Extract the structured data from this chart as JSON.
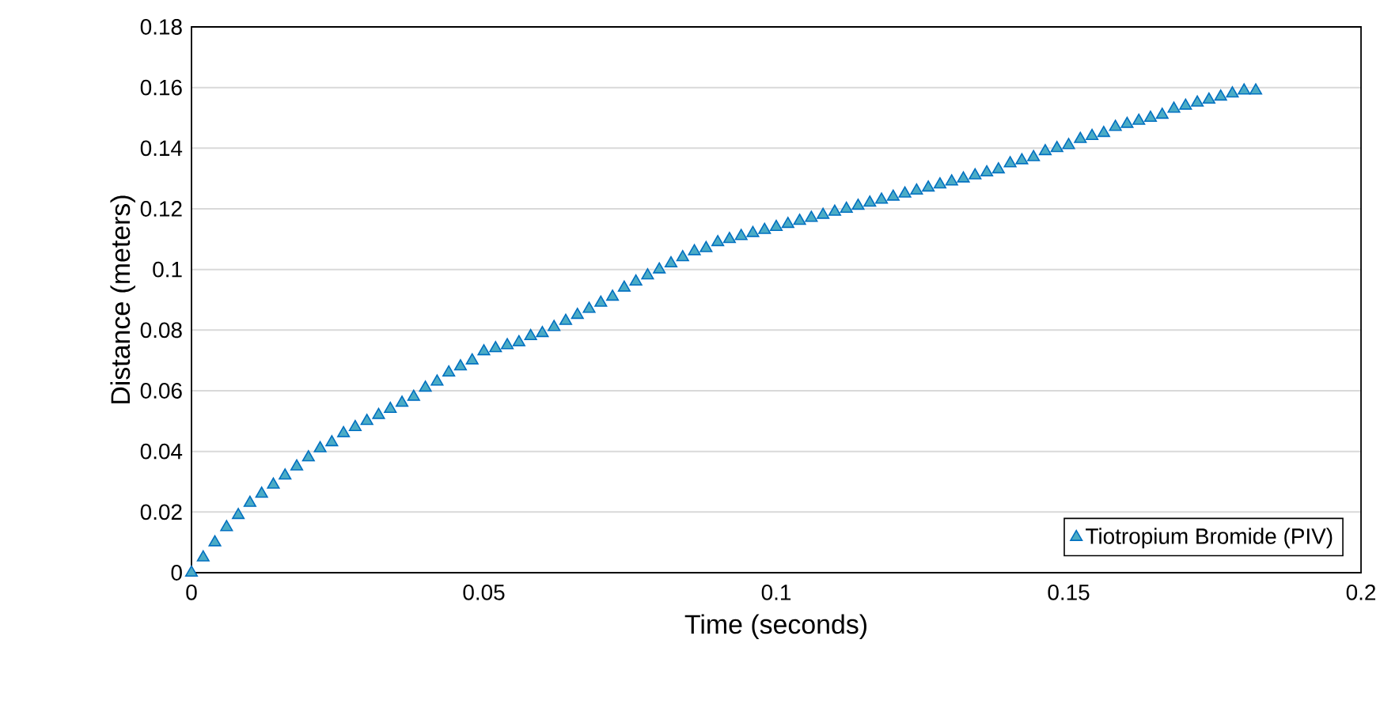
{
  "chart_data": {
    "type": "scatter",
    "xlabel": "Time (seconds)",
    "ylabel": "Distance (meters)",
    "xlim": [
      0,
      0.2
    ],
    "ylim": [
      0,
      0.18
    ],
    "xticks": [
      0,
      0.05,
      0.1,
      0.15,
      0.2
    ],
    "yticks": [
      0,
      0.02,
      0.04,
      0.06,
      0.08,
      0.1,
      0.12,
      0.14,
      0.16,
      0.18
    ],
    "grid": "y",
    "legend": "bottom right",
    "marker": "triangle",
    "x": [
      0,
      0.002,
      0.004,
      0.006,
      0.008,
      0.01,
      0.012,
      0.014,
      0.016,
      0.018,
      0.02,
      0.022,
      0.024,
      0.026,
      0.028,
      0.03,
      0.032,
      0.034,
      0.036,
      0.038,
      0.04,
      0.042,
      0.044,
      0.046,
      0.048,
      0.05,
      0.052,
      0.054,
      0.056,
      0.058,
      0.06,
      0.062,
      0.064,
      0.066,
      0.068,
      0.07,
      0.072,
      0.074,
      0.076,
      0.078,
      0.08,
      0.082,
      0.084,
      0.086,
      0.088,
      0.09,
      0.092,
      0.094,
      0.096,
      0.098,
      0.1,
      0.102,
      0.104,
      0.106,
      0.108,
      0.11,
      0.112,
      0.114,
      0.116,
      0.118,
      0.12,
      0.122,
      0.124,
      0.126,
      0.128,
      0.13,
      0.132,
      0.134,
      0.136,
      0.138,
      0.14,
      0.142,
      0.144,
      0.146,
      0.148,
      0.15,
      0.152,
      0.154,
      0.156,
      0.158,
      0.16,
      0.162,
      0.164,
      0.166,
      0.168,
      0.17,
      0.172,
      0.174,
      0.176,
      0.178,
      0.18,
      0.182
    ],
    "series": [
      {
        "name": "Tiotropium Bromide (PIV)",
        "color": "#4bacc6",
        "values": [
          0,
          0.005,
          0.01,
          0.015,
          0.019,
          0.023,
          0.026,
          0.029,
          0.032,
          0.035,
          0.038,
          0.041,
          0.043,
          0.046,
          0.048,
          0.05,
          0.052,
          0.054,
          0.056,
          0.058,
          0.061,
          0.063,
          0.066,
          0.068,
          0.07,
          0.073,
          0.074,
          0.075,
          0.076,
          0.078,
          0.079,
          0.081,
          0.083,
          0.085,
          0.087,
          0.089,
          0.091,
          0.094,
          0.096,
          0.098,
          0.1,
          0.102,
          0.104,
          0.106,
          0.107,
          0.109,
          0.11,
          0.111,
          0.112,
          0.113,
          0.114,
          0.115,
          0.116,
          0.117,
          0.118,
          0.119,
          0.12,
          0.121,
          0.122,
          0.123,
          0.124,
          0.125,
          0.126,
          0.127,
          0.128,
          0.129,
          0.13,
          0.131,
          0.132,
          0.133,
          0.135,
          0.136,
          0.137,
          0.139,
          0.14,
          0.141,
          0.143,
          0.144,
          0.145,
          0.147,
          0.148,
          0.149,
          0.15,
          0.151,
          0.153,
          0.154,
          0.155,
          0.156,
          0.157,
          0.158,
          0.159,
          0.159
        ]
      }
    ]
  }
}
